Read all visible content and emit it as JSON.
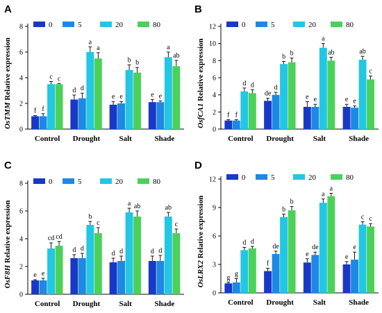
{
  "colors": {
    "0": "#1838c8",
    "5": "#1e88e5",
    "20": "#22c7e3",
    "80": "#4bd15a"
  },
  "chart_data": [
    {
      "type": "bar",
      "panel": "A",
      "gene": "OsTMM",
      "ylabel_suffix": " Relative expression",
      "categories": [
        "Control",
        "Drought",
        "Salt",
        "Shade"
      ],
      "ylim": [
        0,
        8
      ],
      "yticks": [
        0,
        2,
        4,
        6,
        8
      ],
      "series": [
        {
          "name": "0",
          "values": [
            1.0,
            2.3,
            1.9,
            2.1
          ],
          "errors": [
            0.05,
            0.35,
            0.25,
            0.2
          ],
          "labels": [
            "f",
            "d",
            "e",
            "e"
          ]
        },
        {
          "name": "5",
          "values": [
            1.0,
            2.4,
            2.0,
            2.1
          ],
          "errors": [
            0.2,
            0.4,
            0.15,
            0.1
          ],
          "labels": [
            "f",
            "d",
            "e",
            "e"
          ]
        },
        {
          "name": "20",
          "values": [
            3.5,
            6.0,
            4.6,
            5.6
          ],
          "errors": [
            0.2,
            0.4,
            0.4,
            0.4
          ],
          "labels": [
            "c",
            "a",
            "b",
            "a"
          ]
        },
        {
          "name": "80",
          "values": [
            3.5,
            5.5,
            4.4,
            4.9
          ],
          "errors": [
            0.05,
            0.45,
            0.4,
            0.45
          ],
          "labels": [
            "c",
            "a",
            "b",
            "ab"
          ]
        }
      ]
    },
    {
      "type": "bar",
      "panel": "B",
      "gene": "OsfCA1",
      "ylabel_suffix": " Relative expression",
      "categories": [
        "Control",
        "Drought",
        "Salt",
        "Shade"
      ],
      "ylim": [
        0,
        12
      ],
      "yticks": [
        0,
        2,
        4,
        6,
        8,
        10,
        12
      ],
      "series": [
        {
          "name": "0",
          "values": [
            1.0,
            3.3,
            2.6,
            2.6
          ],
          "errors": [
            0.1,
            0.3,
            0.6,
            0.3
          ],
          "labels": [
            "f",
            "de",
            "e",
            "e"
          ]
        },
        {
          "name": "5",
          "values": [
            1.0,
            4.0,
            2.6,
            2.5
          ],
          "errors": [
            0.1,
            0.3,
            0.3,
            0.2
          ],
          "labels": [
            "f",
            "d",
            "e",
            "e"
          ]
        },
        {
          "name": "20",
          "values": [
            4.4,
            7.6,
            9.5,
            8.1
          ],
          "errors": [
            0.4,
            0.3,
            0.5,
            0.4
          ],
          "labels": [
            "d",
            "b",
            "a",
            "ab"
          ]
        },
        {
          "name": "80",
          "values": [
            4.2,
            7.8,
            8.0,
            5.8
          ],
          "errors": [
            0.4,
            0.5,
            0.4,
            0.4
          ],
          "labels": [
            "d",
            "b",
            "ab",
            "c"
          ]
        }
      ]
    },
    {
      "type": "bar",
      "panel": "C",
      "gene": "OsF8H",
      "ylabel_suffix": " Relative expression",
      "categories": [
        "Control",
        "Drought",
        "Salt",
        "Shade"
      ],
      "ylim": [
        0,
        8
      ],
      "yticks": [
        0,
        2,
        4,
        6,
        8
      ],
      "series": [
        {
          "name": "0",
          "values": [
            1.0,
            2.6,
            2.3,
            2.4
          ],
          "errors": [
            0.05,
            0.25,
            0.3,
            0.35
          ],
          "labels": [
            "e",
            "d",
            "d",
            "d"
          ]
        },
        {
          "name": "5",
          "values": [
            1.0,
            2.6,
            2.4,
            2.4
          ],
          "errors": [
            0.15,
            0.35,
            0.35,
            0.4
          ],
          "labels": [
            "e",
            "d",
            "d",
            "d"
          ]
        },
        {
          "name": "20",
          "values": [
            3.3,
            5.0,
            5.9,
            5.6
          ],
          "errors": [
            0.4,
            0.25,
            0.3,
            0.3
          ],
          "labels": [
            "cd",
            "b",
            "a",
            "ab"
          ]
        },
        {
          "name": "80",
          "values": [
            3.5,
            4.4,
            5.6,
            4.4
          ],
          "errors": [
            0.3,
            0.4,
            0.4,
            0.3
          ],
          "labels": [
            "cd",
            "c",
            "ab",
            "c"
          ]
        }
      ]
    },
    {
      "type": "bar",
      "panel": "D",
      "gene": "OsLRX2",
      "ylabel_suffix": " Relative expression",
      "categories": [
        "Control",
        "Drought",
        "Salt",
        "Shade"
      ],
      "ylim": [
        0,
        12
      ],
      "yticks": [
        0,
        3,
        6,
        9,
        12
      ],
      "series": [
        {
          "name": "0",
          "values": [
            1.0,
            2.3,
            3.2,
            3.0
          ],
          "errors": [
            0.1,
            0.3,
            0.4,
            0.3
          ],
          "labels": [
            "g",
            "f",
            "e",
            "e"
          ]
        },
        {
          "name": "5",
          "values": [
            1.1,
            4.1,
            4.0,
            3.5
          ],
          "errors": [
            0.4,
            0.3,
            0.3,
            0.8
          ],
          "labels": [
            "g",
            "de",
            "de",
            "e"
          ]
        },
        {
          "name": "20",
          "values": [
            4.5,
            8.0,
            9.5,
            7.2
          ],
          "errors": [
            0.3,
            0.3,
            0.4,
            0.3
          ],
          "labels": [
            "d",
            "b",
            "a",
            "c"
          ]
        },
        {
          "name": "80",
          "values": [
            4.7,
            8.7,
            10.2,
            7.0
          ],
          "errors": [
            0.2,
            0.4,
            0.3,
            0.3
          ],
          "labels": [
            "d",
            "b",
            "a",
            "c"
          ]
        }
      ]
    }
  ]
}
